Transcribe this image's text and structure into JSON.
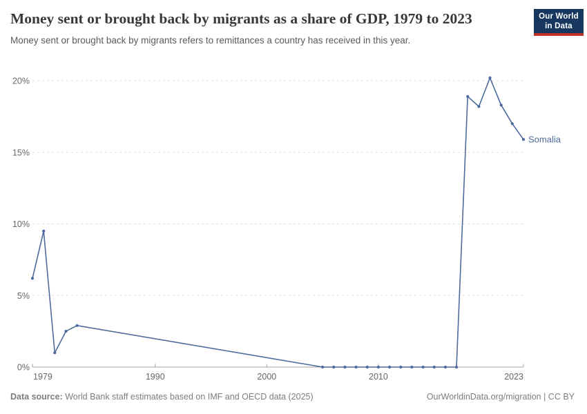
{
  "header": {
    "title": "Money sent or brought back by migrants as a share of GDP, 1979 to 2023",
    "subtitle": "Money sent or brought back by migrants refers to remittances a country has received in this year."
  },
  "logo": {
    "line1": "Our World",
    "line2": "in Data"
  },
  "chart_data": {
    "type": "line",
    "title": "Money sent or brought back by migrants as a share of GDP, 1979 to 2023",
    "xlabel": "",
    "ylabel": "",
    "xlim": [
      1979,
      2023
    ],
    "ylim": [
      0,
      20
    ],
    "grid": "horizontal-dashed",
    "legend_position": "end-of-line-label",
    "xticks": [
      {
        "value": 1979,
        "label": "1979"
      },
      {
        "value": 1990,
        "label": "1990"
      },
      {
        "value": 2000,
        "label": "2000"
      },
      {
        "value": 2010,
        "label": "2010"
      },
      {
        "value": 2023,
        "label": "2023"
      }
    ],
    "yticks": [
      {
        "value": 0,
        "label": "0%"
      },
      {
        "value": 5,
        "label": "5%"
      },
      {
        "value": 10,
        "label": "10%"
      },
      {
        "value": 15,
        "label": "15%"
      },
      {
        "value": 20,
        "label": "20%"
      }
    ],
    "series": [
      {
        "name": "Somalia",
        "color": "#4c6a9c",
        "points": [
          [
            1979,
            6.2
          ],
          [
            1980,
            9.5
          ],
          [
            1981,
            1.0
          ],
          [
            1982,
            2.5
          ],
          [
            1983,
            2.9
          ],
          [
            2005,
            0
          ],
          [
            2006,
            0
          ],
          [
            2007,
            0
          ],
          [
            2008,
            0
          ],
          [
            2009,
            0
          ],
          [
            2010,
            0
          ],
          [
            2011,
            0
          ],
          [
            2012,
            0
          ],
          [
            2013,
            0
          ],
          [
            2014,
            0
          ],
          [
            2015,
            0
          ],
          [
            2016,
            0
          ],
          [
            2017,
            0
          ],
          [
            2018,
            18.9
          ],
          [
            2019,
            18.2
          ],
          [
            2020,
            20.2
          ],
          [
            2021,
            18.3
          ],
          [
            2022,
            17.0
          ],
          [
            2023,
            15.9
          ]
        ]
      }
    ]
  },
  "footer": {
    "source_label": "Data source:",
    "source_text": " World Bank staff estimates based on IMF and OECD data (2025)",
    "credit": "OurWorldinData.org/migration | CC BY"
  },
  "colors": {
    "line": "#4c6a9c",
    "grid": "#dcdcdc",
    "axis": "#a3a3a3",
    "tick_text": "#666666",
    "title_text": "#383838",
    "subtitle_text": "#5a5a5a",
    "footer_text": "#7d7d7d",
    "logo_bg": "#17375e",
    "logo_bar": "#bc3028"
  }
}
